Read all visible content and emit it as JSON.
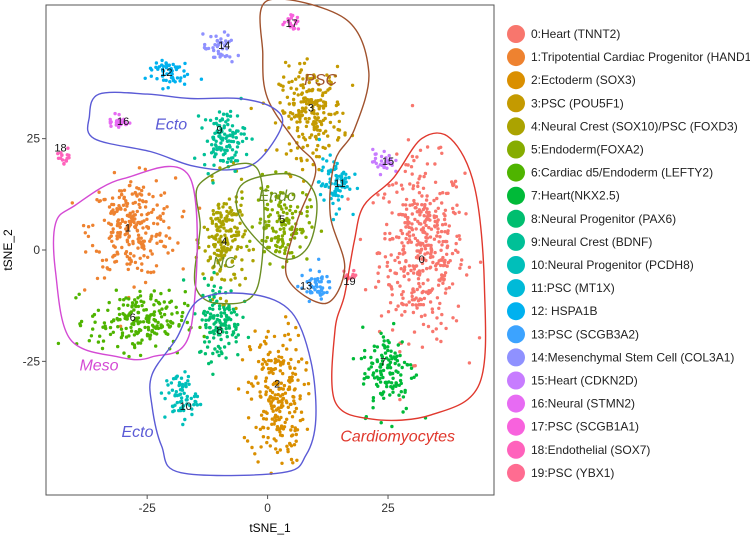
{
  "chart_data": {
    "type": "scatter",
    "title": "",
    "xlabel": "tSNE_1",
    "ylabel": "tSNE_2",
    "xlim": [
      -46,
      47
    ],
    "ylim": [
      -55,
      55
    ],
    "x_ticks": [
      -25,
      0,
      25
    ],
    "x_tick_labels": [
      "-25",
      "0",
      "25"
    ],
    "y_ticks": [
      -25,
      0,
      25
    ],
    "y_tick_labels": [
      "-25",
      "0",
      "25"
    ],
    "grid": false,
    "legend_position": "right",
    "clusters": [
      {
        "id": "0",
        "name": "0:Heart (TNNT2)",
        "color": "#F8766D",
        "center": [
          32,
          0
        ],
        "spread": [
          8,
          18
        ],
        "n": 420
      },
      {
        "id": "1",
        "name": "1:Tripotential Cardiac Progenitor (HAND1)",
        "color": "#EE8230",
        "center": [
          -28,
          5
        ],
        "spread": [
          8,
          10
        ],
        "n": 260
      },
      {
        "id": "2",
        "name": "2:Ectoderm (SOX3)",
        "color": "#DA8F00",
        "center": [
          2,
          -33
        ],
        "spread": [
          5,
          14
        ],
        "n": 240
      },
      {
        "id": "3",
        "name": "3:PSC (POU5F1)",
        "color": "#C49A00",
        "center": [
          9,
          31
        ],
        "spread": [
          6,
          9
        ],
        "n": 220
      },
      {
        "id": "4",
        "name": "4:Neural Crest (SOX10)/PSC (FOXD3)",
        "color": "#ABA300",
        "center": [
          -9,
          2
        ],
        "spread": [
          4,
          11
        ],
        "n": 180
      },
      {
        "id": "5",
        "name": "5:Endoderm(FOXA2)",
        "color": "#86AC00",
        "center": [
          3,
          6
        ],
        "spread": [
          5,
          8
        ],
        "n": 140
      },
      {
        "id": "6",
        "name": "6:Cardiac d5/Endoderm (LEFTY2)",
        "color": "#4FB400",
        "center": [
          -27,
          -16
        ],
        "spread": [
          9,
          6
        ],
        "n": 200
      },
      {
        "id": "7",
        "name": "7:Heart(NKX2.5)",
        "color": "#00BA38",
        "center": [
          25,
          -27
        ],
        "spread": [
          5,
          9
        ],
        "n": 130
      },
      {
        "id": "8",
        "name": "8:Neural Progenitor (PAX6)",
        "color": "#00BE6F",
        "center": [
          -10,
          -16
        ],
        "spread": [
          4,
          8
        ],
        "n": 130
      },
      {
        "id": "9",
        "name": "9:Neural Crest (BDNF)",
        "color": "#00C097",
        "center": [
          -9,
          25
        ],
        "spread": [
          4,
          6
        ],
        "n": 120
      },
      {
        "id": "10",
        "name": "10:Neural Progenitor (PCDH8)",
        "color": "#00BFBA",
        "center": [
          -18,
          -33
        ],
        "spread": [
          3,
          5
        ],
        "n": 70
      },
      {
        "id": "11",
        "name": "11:PSC (MT1X)",
        "color": "#00BAD8",
        "center": [
          14,
          15
        ],
        "spread": [
          3,
          5
        ],
        "n": 80
      },
      {
        "id": "12",
        "name": "12: HSPA1B",
        "color": "#00B1EF",
        "center": [
          -21,
          40
        ],
        "spread": [
          4,
          3
        ],
        "n": 55
      },
      {
        "id": "13",
        "name": "13:PSC (SCGB3A2)",
        "color": "#3CA3FF",
        "center": [
          10,
          -8
        ],
        "spread": [
          3,
          3
        ],
        "n": 50
      },
      {
        "id": "14",
        "name": "14:Mesenchymal Stem Cell (COL3A1)",
        "color": "#8F91FF",
        "center": [
          -10,
          45
        ],
        "spread": [
          3,
          3
        ],
        "n": 40
      },
      {
        "id": "15",
        "name": "15:Heart (CDKN2D)",
        "color": "#C77CFF",
        "center": [
          24,
          20
        ],
        "spread": [
          2,
          2.5
        ],
        "n": 30
      },
      {
        "id": "16",
        "name": "16:Neural (STMN2)",
        "color": "#E76BF3",
        "center": [
          -31,
          29
        ],
        "spread": [
          2,
          2
        ],
        "n": 28
      },
      {
        "id": "17",
        "name": "17:PSC (SCGB1A1)",
        "color": "#F862DD",
        "center": [
          5,
          51
        ],
        "spread": [
          1.5,
          1.5
        ],
        "n": 20
      },
      {
        "id": "18",
        "name": "18:Endothelial (SOX7)",
        "color": "#FF62BC",
        "center": [
          -42,
          21
        ],
        "spread": [
          1.5,
          1.5
        ],
        "n": 16
      },
      {
        "id": "19",
        "name": "19:PSC (YBX1)",
        "color": "#FF6C91",
        "center": [
          17,
          -6
        ],
        "spread": [
          1.5,
          1.5
        ],
        "n": 14
      }
    ],
    "cluster_labels": [
      {
        "text": "0",
        "x": 32,
        "y": -2
      },
      {
        "text": "1",
        "x": -29,
        "y": 5
      },
      {
        "text": "2",
        "x": 2,
        "y": -30
      },
      {
        "text": "3",
        "x": 9,
        "y": 32
      },
      {
        "text": "4",
        "x": -9,
        "y": 2
      },
      {
        "text": "5",
        "x": 3,
        "y": 7
      },
      {
        "text": "6",
        "x": -28,
        "y": -15
      },
      {
        "text": "7",
        "x": 24,
        "y": -25
      },
      {
        "text": "8",
        "x": -10,
        "y": -18
      },
      {
        "text": "9",
        "x": -10,
        "y": 27
      },
      {
        "text": "10",
        "x": -17,
        "y": -35
      },
      {
        "text": "11",
        "x": 15,
        "y": 15
      },
      {
        "text": "12",
        "x": -21,
        "y": 40
      },
      {
        "text": "13",
        "x": 8,
        "y": -8
      },
      {
        "text": "14",
        "x": -9,
        "y": 46
      },
      {
        "text": "15",
        "x": 25,
        "y": 20
      },
      {
        "text": "16",
        "x": -30,
        "y": 29
      },
      {
        "text": "17",
        "x": 5,
        "y": 51
      },
      {
        "text": "18",
        "x": -43,
        "y": 23
      },
      {
        "text": "19",
        "x": 17,
        "y": -7
      }
    ],
    "annotations": [
      {
        "text": "PSC",
        "x": 11,
        "y": 37,
        "color": "#A0522D"
      },
      {
        "text": "Ecto",
        "x": -20,
        "y": 27,
        "color": "#5B5BD6"
      },
      {
        "text": "Endo",
        "x": 2,
        "y": 11,
        "color": "#6B8E23"
      },
      {
        "text": "NC",
        "x": -9,
        "y": -4,
        "color": "#6B8E23"
      },
      {
        "text": "Meso",
        "x": -35,
        "y": -27,
        "color": "#D44AD4"
      },
      {
        "text": "Ecto",
        "x": -27,
        "y": -42,
        "color": "#5B5BD6"
      },
      {
        "text": "Cardiomyocytes",
        "x": 27,
        "y": -43,
        "color": "#E0382D"
      }
    ],
    "regions": [
      {
        "name": "PSC",
        "color": "#A0522D",
        "points": [
          [
            0,
            56
          ],
          [
            16,
            52
          ],
          [
            21,
            40
          ],
          [
            18,
            27
          ],
          [
            14,
            20
          ],
          [
            13,
            8
          ],
          [
            16,
            -4
          ],
          [
            12,
            -12
          ],
          [
            4,
            -6
          ],
          [
            6,
            6
          ],
          [
            10,
            18
          ],
          [
            6,
            24
          ],
          [
            0,
            34
          ],
          [
            -1,
            44
          ]
        ]
      },
      {
        "name": "Ecto-upper",
        "color": "#5B5BD6",
        "points": [
          [
            -35,
            35
          ],
          [
            -25,
            35
          ],
          [
            -16,
            34
          ],
          [
            -6,
            34
          ],
          [
            1,
            32
          ],
          [
            3,
            28
          ],
          [
            -2,
            20
          ],
          [
            -8,
            18
          ],
          [
            -16,
            19
          ],
          [
            -24,
            22
          ],
          [
            -36,
            25
          ],
          [
            -37,
            30
          ]
        ]
      },
      {
        "name": "Endo",
        "color": "#6B8E23",
        "points": [
          [
            -5,
            15
          ],
          [
            5,
            17
          ],
          [
            10,
            12
          ],
          [
            9,
            2
          ],
          [
            5,
            -2
          ],
          [
            0,
            0
          ],
          [
            -6,
            8
          ]
        ]
      },
      {
        "name": "NC",
        "color": "#6B8E23",
        "points": [
          [
            -14,
            15
          ],
          [
            -2,
            18
          ],
          [
            -2,
            -8
          ],
          [
            -10,
            -12
          ],
          [
            -15,
            -8
          ],
          [
            -14,
            5
          ]
        ]
      },
      {
        "name": "Meso",
        "color": "#D44AD4",
        "points": [
          [
            -40,
            10
          ],
          [
            -30,
            16
          ],
          [
            -16,
            16
          ],
          [
            -16,
            -18
          ],
          [
            -24,
            -24
          ],
          [
            -31,
            -24
          ],
          [
            -41,
            -20
          ],
          [
            -44,
            -5
          ],
          [
            -44,
            6
          ]
        ]
      },
      {
        "name": "Ecto-lower",
        "color": "#5B5BD6",
        "points": [
          [
            -14,
            -11
          ],
          [
            -3,
            -10
          ],
          [
            5,
            -14
          ],
          [
            9,
            -25
          ],
          [
            10,
            -38
          ],
          [
            8,
            -46
          ],
          [
            3,
            -50
          ],
          [
            -18,
            -50
          ],
          [
            -22,
            -44
          ],
          [
            -24,
            -35
          ],
          [
            -24,
            -28
          ],
          [
            -19,
            -20
          ]
        ]
      },
      {
        "name": "Cardiomyocytes",
        "color": "#E0382D",
        "points": [
          [
            20,
            10
          ],
          [
            26,
            16
          ],
          [
            32,
            25
          ],
          [
            38,
            25
          ],
          [
            43,
            14
          ],
          [
            45,
            -8
          ],
          [
            44,
            -30
          ],
          [
            34,
            -37
          ],
          [
            22,
            -38
          ],
          [
            14,
            -34
          ],
          [
            14,
            -18
          ],
          [
            16,
            -10
          ],
          [
            18,
            2
          ]
        ]
      }
    ]
  }
}
